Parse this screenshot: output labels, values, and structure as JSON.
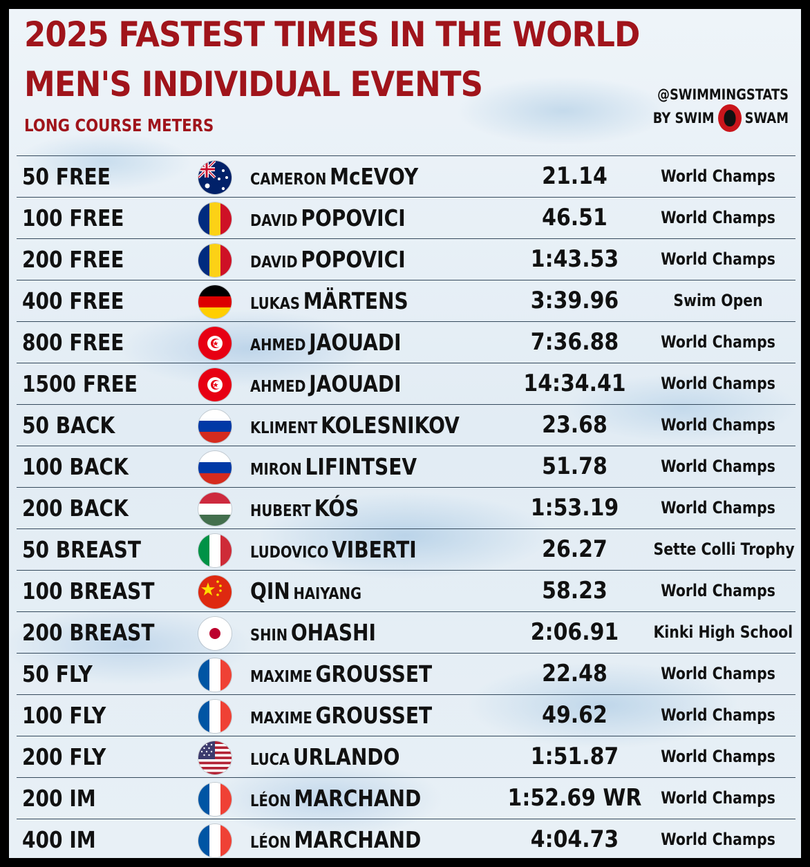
{
  "header": {
    "title_line1": "2025 FASTEST TIMES IN THE WORLD",
    "title_line2": "MEN'S INDIVIDUAL EVENTS",
    "subtitle": "LONG COURSE METERS",
    "handle": "@SWIMMINGSTATS",
    "by_left": "BY SWIM",
    "by_right": "SWAM",
    "title_color": "#a0141b"
  },
  "rows": [
    {
      "event": "50 FREE",
      "flag": "australia",
      "first": "CAMERON",
      "last": "McEVOY",
      "time": "21.14",
      "meet": "World Champs"
    },
    {
      "event": "100 FREE",
      "flag": "romania",
      "first": "DAVID",
      "last": "POPOVICI",
      "time": "46.51",
      "meet": "World Champs"
    },
    {
      "event": "200 FREE",
      "flag": "romania",
      "first": "DAVID",
      "last": "POPOVICI",
      "time": "1:43.53",
      "meet": "World Champs"
    },
    {
      "event": "400 FREE",
      "flag": "germany",
      "first": "LUKAS",
      "last": "MÄRTENS",
      "time": "3:39.96",
      "meet": "Swim Open"
    },
    {
      "event": "800 FREE",
      "flag": "tunisia",
      "first": "AHMED",
      "last": "JAOUADI",
      "time": "7:36.88",
      "meet": "World Champs"
    },
    {
      "event": "1500 FREE",
      "flag": "tunisia",
      "first": "AHMED",
      "last": "JAOUADI",
      "time": "14:34.41",
      "meet": "World Champs"
    },
    {
      "event": "50 BACK",
      "flag": "russia",
      "first": "KLIMENT",
      "last": "KOLESNIKOV",
      "time": "23.68",
      "meet": "World Champs"
    },
    {
      "event": "100 BACK",
      "flag": "russia",
      "first": "MIRON",
      "last": "LIFINTSEV",
      "time": "51.78",
      "meet": "World Champs"
    },
    {
      "event": "200 BACK",
      "flag": "hungary",
      "first": "HUBERT",
      "last": "KÓS",
      "time": "1:53.19",
      "meet": "World Champs"
    },
    {
      "event": "50 BREAST",
      "flag": "italy",
      "first": "LUDOVICO",
      "last": "VIBERTI",
      "time": "26.27",
      "meet": "Sette Colli Trophy"
    },
    {
      "event": "100 BREAST",
      "flag": "china",
      "first": "HAIYANG",
      "last": "QIN",
      "name_order": "last-first",
      "time": "58.23",
      "meet": "World Champs"
    },
    {
      "event": "200 BREAST",
      "flag": "japan",
      "first": "SHIN",
      "last": "OHASHI",
      "time": "2:06.91",
      "meet": "Kinki High School"
    },
    {
      "event": "50 FLY",
      "flag": "france",
      "first": "MAXIME",
      "last": "GROUSSET",
      "time": "22.48",
      "meet": "World Champs"
    },
    {
      "event": "100 FLY",
      "flag": "france",
      "first": "MAXIME",
      "last": "GROUSSET",
      "time": "49.62",
      "meet": "World Champs"
    },
    {
      "event": "200 FLY",
      "flag": "usa",
      "first": "LUCA",
      "last": "URLANDO",
      "time": "1:51.87",
      "meet": "World Champs"
    },
    {
      "event": "200 IM",
      "flag": "france",
      "first": "LÉON",
      "last": "MARCHAND",
      "time": "1:52.69 WR",
      "meet": "World Champs"
    },
    {
      "event": "400 IM",
      "flag": "france",
      "first": "LÉON",
      "last": "MARCHAND",
      "time": "4:04.73",
      "meet": "World Champs"
    }
  ]
}
